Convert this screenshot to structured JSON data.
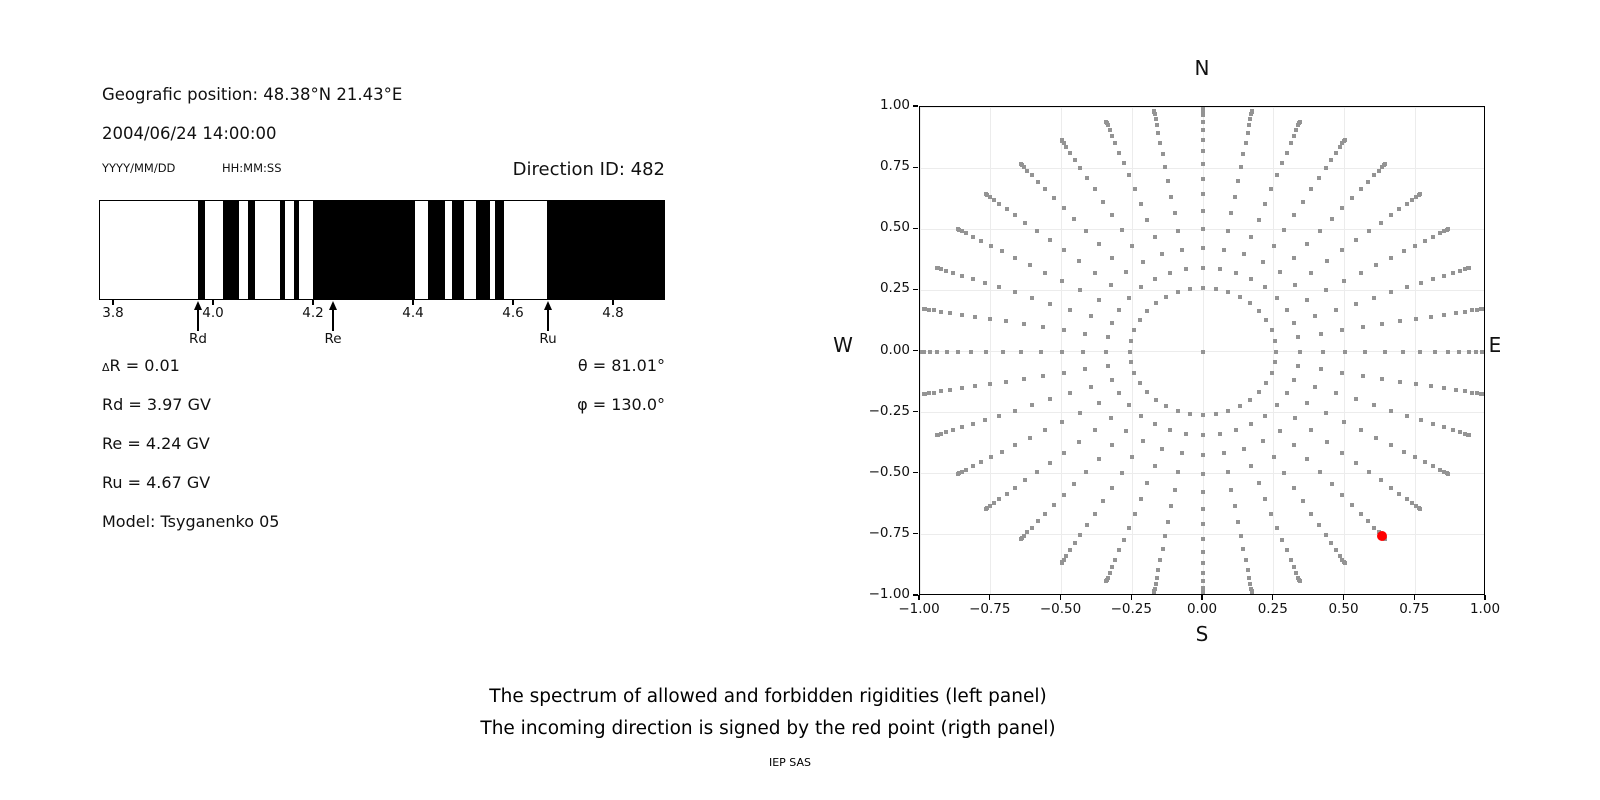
{
  "header": {
    "position": "Geografic position: 48.38°N 21.43°E",
    "datetime": "2004/06/24 14:00:00",
    "date_format": "YYYY/MM/DD",
    "time_format": "HH:MM:SS",
    "direction_id": "Direction ID: 482"
  },
  "info": {
    "delta_symbol": "Δ",
    "delta_rest": "R = 0.01",
    "rd": "Rd = 3.97 GV",
    "re": "Re = 4.24 GV",
    "ru": "Ru = 4.67 GV",
    "model": "Model: Tsyganenko 05",
    "theta": "θ = 81.01°",
    "phi": "φ = 130.0°"
  },
  "captions": {
    "line1": "The spectrum of allowed and forbidden rigidities (left panel)",
    "line2": "The incoming direction is signed by the red point (rigth panel)",
    "credit": "IEP SAS"
  },
  "chart_data": [
    {
      "type": "bar",
      "name": "rigidity-spectrum-barcode",
      "xlim": [
        3.772,
        4.904
      ],
      "xticks": [
        3.8,
        4.0,
        4.2,
        4.4,
        4.6,
        4.8
      ],
      "xtick_decimals": 1,
      "bar_color": "#000000",
      "background_color": "#ffffff",
      "black_segments_gv": [
        [
          3.968,
          3.982
        ],
        [
          4.018,
          4.05
        ],
        [
          4.067,
          4.082
        ],
        [
          4.131,
          4.141
        ],
        [
          4.16,
          4.169
        ],
        [
          4.198,
          4.401
        ],
        [
          4.427,
          4.462
        ],
        [
          4.475,
          4.5
        ],
        [
          4.523,
          4.551
        ],
        [
          4.562,
          4.58
        ],
        [
          4.665,
          4.904
        ]
      ],
      "cutoff_markers": [
        {
          "label": "Rd",
          "value_gv": 3.97
        },
        {
          "label": "Re",
          "value_gv": 4.24
        },
        {
          "label": "Ru",
          "value_gv": 4.67
        }
      ]
    },
    {
      "type": "scatter",
      "name": "incoming-direction-map",
      "compass": {
        "top": "N",
        "bottom": "S",
        "left": "W",
        "right": "E"
      },
      "xlim": [
        -1.0,
        1.0
      ],
      "ylim": [
        -1.0,
        1.0
      ],
      "ticks": [
        -1.0,
        -0.75,
        -0.5,
        -0.25,
        0.0,
        0.25,
        0.5,
        0.75,
        1.0
      ],
      "tick_decimals": 2,
      "grid": true,
      "gray_points": {
        "description": "radial grid of view directions: r = sin(zenith), plotted at each azimuth",
        "azimuth_deg": {
          "start": 0,
          "stop": 350,
          "step": 10
        },
        "zenith_deg": {
          "start": 15,
          "stop": 90,
          "step": 5
        },
        "include_center_point": true,
        "marker": "square",
        "color": "#949494"
      },
      "red_point": {
        "x": 0.633,
        "y": -0.755,
        "azimuth_deg": 310,
        "zenith_deg": 80,
        "marker": "circle",
        "color": "#ff0000"
      }
    }
  ]
}
